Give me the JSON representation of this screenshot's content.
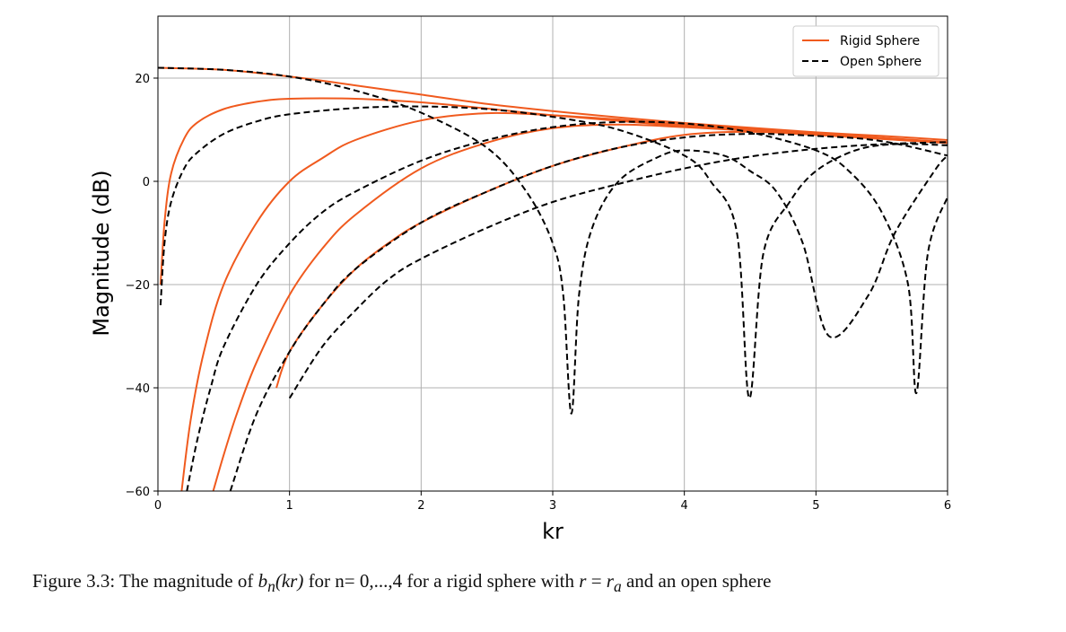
{
  "chart_data": {
    "type": "line",
    "xlabel": "kr",
    "ylabel": "Magnitude (dB)",
    "xlim": [
      0,
      6
    ],
    "ylim": [
      -60,
      32
    ],
    "x_ticks": [
      "0",
      "1",
      "2",
      "3",
      "4",
      "5",
      "6"
    ],
    "y_ticks": [
      "20",
      "0",
      "−20",
      "−40",
      "−60"
    ],
    "y_tick_values": [
      20,
      0,
      -20,
      -40,
      -60
    ],
    "grid": true,
    "legend_position": "top-right",
    "legend": [
      {
        "label": "Rigid Sphere",
        "style": "solid",
        "color": "#f05a1e"
      },
      {
        "label": "Open Sphere",
        "style": "dashed",
        "color": "#000000"
      }
    ],
    "series": [
      {
        "group": "Rigid Sphere",
        "n": 0,
        "x": [
          0.0,
          0.5,
          1.0,
          1.5,
          2.0,
          2.5,
          3.0,
          3.5,
          4.0,
          4.5,
          5.0,
          5.5,
          6.0
        ],
        "values": [
          22,
          21.6,
          20.3,
          18.6,
          16.8,
          15.0,
          13.6,
          12.4,
          11.3,
          10.4,
          9.5,
          8.8,
          8.0
        ]
      },
      {
        "group": "Rigid Sphere",
        "n": 1,
        "x": [
          0.02,
          0.05,
          0.1,
          0.2,
          0.3,
          0.5,
          0.75,
          1.0,
          1.5,
          2.0,
          2.5,
          3.0,
          4.0,
          5.0,
          6.0
        ],
        "values": [
          -20,
          -8,
          1.5,
          8.3,
          11.4,
          14.0,
          15.4,
          16.0,
          16.0,
          15.3,
          14.1,
          12.8,
          10.7,
          9.0,
          7.5
        ]
      },
      {
        "group": "Rigid Sphere",
        "n": 2,
        "x": [
          0.18,
          0.25,
          0.35,
          0.5,
          0.75,
          1.0,
          1.25,
          1.5,
          2.0,
          2.5,
          3.0,
          3.5,
          4.0,
          5.0,
          6.0
        ],
        "values": [
          -60,
          -46,
          -33,
          -20,
          -8,
          0,
          4.5,
          8.0,
          11.8,
          13.2,
          12.8,
          12.0,
          11.0,
          9.3,
          7.6
        ]
      },
      {
        "group": "Rigid Sphere",
        "n": 3,
        "x": [
          0.42,
          0.5,
          0.6,
          0.75,
          1.0,
          1.25,
          1.5,
          2.0,
          2.5,
          3.0,
          3.5,
          4.0,
          4.5,
          5.0,
          6.0
        ],
        "values": [
          -60,
          -53,
          -45,
          -35,
          -22,
          -13,
          -6.5,
          2.5,
          7.5,
          10.3,
          11.0,
          10.5,
          9.8,
          9.2,
          7.5
        ]
      },
      {
        "group": "Rigid Sphere",
        "n": 4,
        "x": [
          0.9,
          1.0,
          1.25,
          1.5,
          1.75,
          2.0,
          2.5,
          3.0,
          3.5,
          4.0,
          4.5,
          5.0,
          5.5,
          6.0
        ],
        "values": [
          -40,
          -33,
          -24,
          -17,
          -12,
          -8,
          -2,
          3,
          6.5,
          9.0,
          9.6,
          9.0,
          8.2,
          7.4
        ]
      },
      {
        "group": "Open Sphere",
        "n": 0,
        "x": [
          0.0,
          0.5,
          1.0,
          1.5,
          2.0,
          2.5,
          2.8,
          3.0,
          3.08,
          3.1416,
          3.2,
          3.3,
          3.5,
          3.8,
          4.0,
          4.3,
          4.5,
          4.7,
          4.9,
          5.1,
          5.4,
          5.6,
          5.9,
          6.0
        ],
        "values": [
          22,
          21.6,
          20.3,
          17.6,
          13.3,
          6.5,
          -2,
          -12,
          -22,
          -45,
          -22,
          -9,
          0,
          4.7,
          6,
          5,
          2,
          -2,
          -12,
          -30,
          -22,
          -10,
          2,
          5
        ]
      },
      {
        "group": "Open Sphere",
        "n": 1,
        "x": [
          0.02,
          0.05,
          0.1,
          0.2,
          0.3,
          0.5,
          0.75,
          1.0,
          1.5,
          2.0,
          2.5,
          3.0,
          3.5,
          4.0,
          4.2,
          4.4,
          4.4934,
          4.6,
          4.8,
          5.0,
          5.3,
          5.6,
          6.0
        ],
        "values": [
          -24,
          -12,
          -4,
          2.5,
          5.6,
          9.2,
          11.6,
          13.0,
          14.2,
          14.5,
          14.0,
          12.5,
          10.0,
          5,
          0,
          -10,
          -42,
          -14,
          -4,
          2,
          6,
          7.2,
          7.0
        ]
      },
      {
        "group": "Open Sphere",
        "n": 2,
        "x": [
          0.22,
          0.3,
          0.4,
          0.5,
          0.75,
          1.0,
          1.25,
          1.5,
          2.0,
          2.5,
          3.0,
          3.5,
          4.0,
          4.5,
          5.0,
          5.25,
          5.5,
          5.7,
          5.7635,
          5.85,
          6.0
        ],
        "values": [
          -60,
          -50,
          -40,
          -32,
          -20,
          -12,
          -6,
          -2,
          4,
          8,
          10.5,
          11.5,
          11.2,
          9.5,
          6,
          2,
          -6,
          -20,
          -41,
          -14,
          -3
        ]
      },
      {
        "group": "Open Sphere",
        "n": 3,
        "x": [
          0.55,
          0.75,
          1.0,
          1.25,
          1.5,
          2.0,
          2.5,
          3.0,
          3.5,
          4.0,
          4.5,
          5.0,
          5.5,
          6.0
        ],
        "values": [
          -60,
          -45,
          -33,
          -24,
          -17,
          -8,
          -2,
          3,
          6.5,
          8.5,
          9.2,
          8.8,
          7.8,
          5
        ]
      },
      {
        "group": "Open Sphere",
        "n": 4,
        "x": [
          1.0,
          1.25,
          1.5,
          1.75,
          2.0,
          2.5,
          3.0,
          3.5,
          4.0,
          4.5,
          5.0,
          5.5,
          6.0
        ],
        "values": [
          -42,
          -32,
          -25,
          -19,
          -15,
          -9,
          -4,
          -0.5,
          2.5,
          4.8,
          6.3,
          7.2,
          7.6
        ]
      }
    ]
  },
  "caption": {
    "prefix": "Figure 3.3: The magnitude of ",
    "b": "b",
    "n_sub": "n",
    "kr": "(kr)",
    "mid": " for n= 0,...,4 for a rigid sphere with ",
    "r": "r",
    "eq": " = ",
    "ra": "r",
    "a_sub": "a",
    "suffix": " and an open sphere"
  }
}
